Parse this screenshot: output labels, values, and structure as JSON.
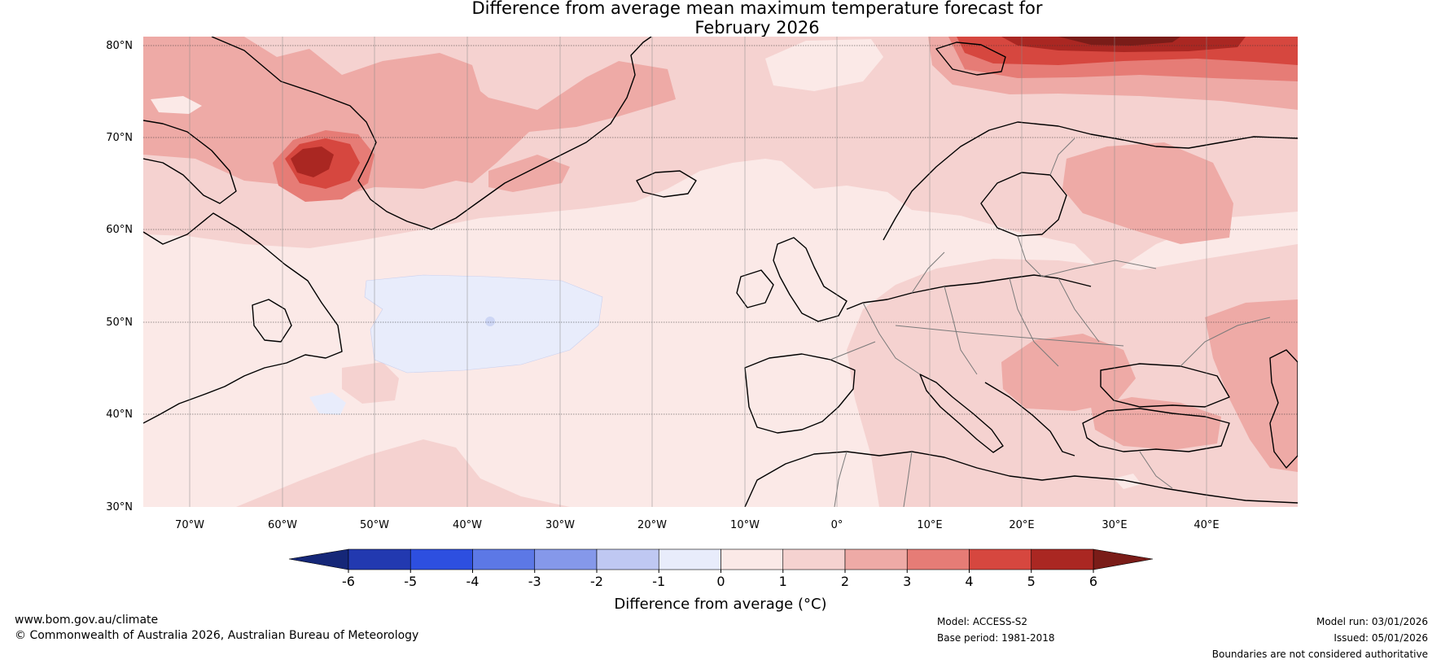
{
  "title": {
    "line1": "Difference from average mean maximum temperature forecast for",
    "line2": "February 2026"
  },
  "map": {
    "region": "North Atlantic and Europe",
    "lat_labels": [
      "80°N",
      "70°N",
      "60°N",
      "50°N",
      "40°N",
      "30°N"
    ],
    "lon_labels": [
      "70°W",
      "60°W",
      "50°W",
      "40°W",
      "30°W",
      "20°W",
      "10°W",
      "0°",
      "10°E",
      "20°E",
      "30°E",
      "40°E"
    ],
    "anomaly_fields": [
      {
        "name": "Greenland west coast warm anomaly",
        "value_range": "4 to 6"
      },
      {
        "name": "Barents Sea warm anomaly",
        "value_range": "5 to 6+"
      },
      {
        "name": "Central North Atlantic cool anomaly",
        "value_range": "-1 to 0"
      },
      {
        "name": "Eastern Europe warm anomaly",
        "value_range": "2 to 3"
      }
    ]
  },
  "colorbar": {
    "ticks": [
      "-6",
      "-5",
      "-4",
      "-3",
      "-2",
      "-1",
      "0",
      "1",
      "2",
      "3",
      "4",
      "5",
      "6"
    ],
    "colors": [
      "#2239b0",
      "#2d4fe0",
      "#5c78e6",
      "#8598ea",
      "#bfc8f2",
      "#e8ecfb",
      "#fbe9e7",
      "#f5d2d0",
      "#eeaaa6",
      "#e67c76",
      "#d6473f",
      "#aa2722"
    ],
    "under_color": "#152778",
    "over_color": "#7a1c18",
    "label": "Difference from average (",
    "unit": "°C",
    "label_close": ")"
  },
  "footer": {
    "website": "www.bom.gov.au/climate",
    "copyright": "© Commonwealth of Australia 2026, Australian Bureau of Meteorology",
    "model": "Model: ACCESS-S2",
    "base_period": "Base period: 1981-2018",
    "model_run": "Model run: 03/01/2026",
    "issued": "Issued: 05/01/2026",
    "disclaimer": "Boundaries are not considered authoritative"
  }
}
